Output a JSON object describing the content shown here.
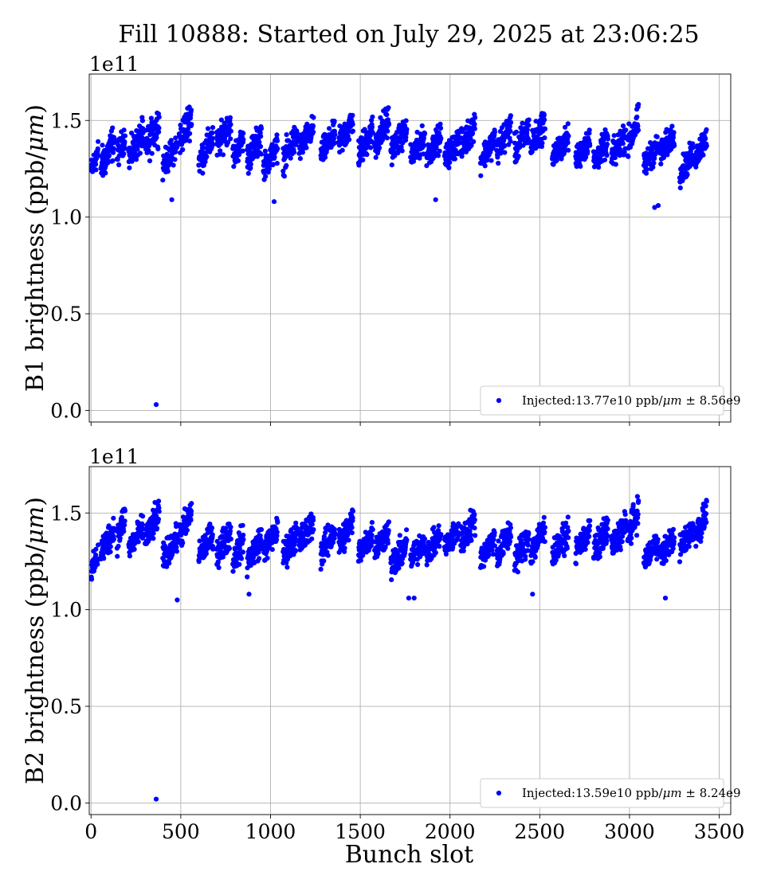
{
  "figure": {
    "title": "Fill 10888: Started on July 29, 2025 at 23:06:25"
  },
  "chart_data": [
    {
      "type": "scatter",
      "panel": "top",
      "ylabel_text": "B1 brightness (ppb/",
      "ylabel_unit": "μm",
      "ylabel_close": ")",
      "y_offset_label": "1e11",
      "y_scale": 100000000000.0,
      "xlim": [
        -10,
        3564
      ],
      "ylim": [
        -0.06,
        1.74
      ],
      "xticks": [
        0,
        500,
        1000,
        1500,
        2000,
        2500,
        3000,
        3500
      ],
      "yticks": [
        0.0,
        0.5,
        1.0,
        1.5
      ],
      "ytick_labels": [
        "0.0",
        "0.5",
        "1.0",
        "1.5"
      ],
      "xtick_labels_visible": false,
      "grid": true,
      "legend_position": "lower-right",
      "legend": {
        "prefix": "Injected:13.77e10 ppb/",
        "unit": "μm",
        "suffix": " ±  8.56e9"
      },
      "marker_color": "#0000ff",
      "trains": [
        [
          2,
          40,
          1.29,
          0.12
        ],
        [
          55,
          130,
          1.33,
          0.16
        ],
        [
          145,
          190,
          1.37,
          0.12
        ],
        [
          210,
          290,
          1.37,
          0.14
        ],
        [
          300,
          380,
          1.42,
          0.16
        ],
        [
          400,
          480,
          1.32,
          0.12
        ],
        [
          490,
          560,
          1.46,
          0.16
        ],
        [
          600,
          680,
          1.35,
          0.14
        ],
        [
          700,
          780,
          1.43,
          0.14
        ],
        [
          790,
          850,
          1.36,
          0.12
        ],
        [
          870,
          950,
          1.36,
          0.14
        ],
        [
          960,
          1040,
          1.31,
          0.12
        ],
        [
          1070,
          1150,
          1.36,
          0.14
        ],
        [
          1160,
          1240,
          1.41,
          0.12
        ],
        [
          1280,
          1360,
          1.38,
          0.12
        ],
        [
          1380,
          1460,
          1.44,
          0.14
        ],
        [
          1490,
          1570,
          1.39,
          0.14
        ],
        [
          1580,
          1660,
          1.44,
          0.16
        ],
        [
          1670,
          1760,
          1.4,
          0.12
        ],
        [
          1780,
          1860,
          1.36,
          0.12
        ],
        [
          1870,
          1950,
          1.37,
          0.12
        ],
        [
          1970,
          2050,
          1.35,
          0.12
        ],
        [
          2060,
          2140,
          1.42,
          0.14
        ],
        [
          2170,
          2250,
          1.35,
          0.12
        ],
        [
          2260,
          2340,
          1.41,
          0.14
        ],
        [
          2360,
          2440,
          1.4,
          0.14
        ],
        [
          2450,
          2530,
          1.43,
          0.14
        ],
        [
          2570,
          2660,
          1.36,
          0.12
        ],
        [
          2700,
          2780,
          1.35,
          0.12
        ],
        [
          2800,
          2880,
          1.34,
          0.12
        ],
        [
          2900,
          2980,
          1.37,
          0.14
        ],
        [
          2990,
          3050,
          1.44,
          0.14
        ],
        [
          3080,
          3160,
          1.32,
          0.12
        ],
        [
          3170,
          3250,
          1.38,
          0.12
        ],
        [
          3280,
          3360,
          1.28,
          0.12
        ],
        [
          3370,
          3430,
          1.37,
          0.12
        ]
      ],
      "outliers": [
        [
          363,
          0.03
        ],
        [
          1020,
          1.08
        ],
        [
          3140,
          1.05
        ],
        [
          3160,
          1.06
        ],
        [
          1920,
          1.09
        ],
        [
          450,
          1.09
        ]
      ]
    },
    {
      "type": "scatter",
      "panel": "bottom",
      "ylabel_text": "B2 brightness (ppb/",
      "ylabel_unit": "μm",
      "ylabel_close": ")",
      "y_offset_label": "1e11",
      "y_scale": 100000000000.0,
      "xlim": [
        -10,
        3564
      ],
      "ylim": [
        -0.06,
        1.74
      ],
      "xticks": [
        0,
        500,
        1000,
        1500,
        2000,
        2500,
        3000,
        3500
      ],
      "xtick_labels": [
        "0",
        "500",
        "1000",
        "1500",
        "2000",
        "2500",
        "3000",
        "3500"
      ],
      "yticks": [
        0.0,
        0.5,
        1.0,
        1.5
      ],
      "ytick_labels": [
        "0.0",
        "0.5",
        "1.0",
        "1.5"
      ],
      "xlabel": "Bunch slot",
      "xtick_labels_visible": true,
      "grid": true,
      "legend_position": "lower-right",
      "legend": {
        "prefix": "Injected:13.59e10 ppb/",
        "unit": "μm",
        "suffix": " ±  8.24e9"
      },
      "marker_color": "#0000ff",
      "trains": [
        [
          2,
          40,
          1.24,
          0.12
        ],
        [
          55,
          130,
          1.36,
          0.14
        ],
        [
          145,
          190,
          1.43,
          0.14
        ],
        [
          210,
          290,
          1.37,
          0.12
        ],
        [
          300,
          380,
          1.43,
          0.14
        ],
        [
          400,
          480,
          1.32,
          0.12
        ],
        [
          490,
          560,
          1.44,
          0.14
        ],
        [
          600,
          680,
          1.34,
          0.12
        ],
        [
          700,
          780,
          1.35,
          0.14
        ],
        [
          790,
          850,
          1.31,
          0.14
        ],
        [
          870,
          950,
          1.31,
          0.14
        ],
        [
          960,
          1040,
          1.36,
          0.12
        ],
        [
          1070,
          1150,
          1.34,
          0.14
        ],
        [
          1160,
          1240,
          1.4,
          0.14
        ],
        [
          1280,
          1360,
          1.35,
          0.14
        ],
        [
          1380,
          1460,
          1.4,
          0.14
        ],
        [
          1490,
          1570,
          1.35,
          0.12
        ],
        [
          1580,
          1660,
          1.36,
          0.12
        ],
        [
          1670,
          1760,
          1.28,
          0.14
        ],
        [
          1780,
          1860,
          1.31,
          0.12
        ],
        [
          1870,
          1950,
          1.34,
          0.12
        ],
        [
          1970,
          2050,
          1.37,
          0.12
        ],
        [
          2060,
          2140,
          1.41,
          0.14
        ],
        [
          2170,
          2250,
          1.32,
          0.12
        ],
        [
          2260,
          2340,
          1.34,
          0.14
        ],
        [
          2360,
          2440,
          1.32,
          0.14
        ],
        [
          2450,
          2530,
          1.36,
          0.14
        ],
        [
          2570,
          2660,
          1.34,
          0.12
        ],
        [
          2700,
          2780,
          1.36,
          0.12
        ],
        [
          2800,
          2880,
          1.36,
          0.14
        ],
        [
          2900,
          2980,
          1.38,
          0.14
        ],
        [
          2990,
          3050,
          1.45,
          0.14
        ],
        [
          3080,
          3160,
          1.3,
          0.12
        ],
        [
          3170,
          3250,
          1.33,
          0.12
        ],
        [
          3280,
          3360,
          1.37,
          0.12
        ],
        [
          3370,
          3430,
          1.45,
          0.16
        ]
      ],
      "outliers": [
        [
          363,
          0.02
        ],
        [
          480,
          1.05
        ],
        [
          880,
          1.08
        ],
        [
          1770,
          1.06
        ],
        [
          1800,
          1.06
        ],
        [
          3200,
          1.06
        ],
        [
          2460,
          1.08
        ]
      ]
    }
  ]
}
